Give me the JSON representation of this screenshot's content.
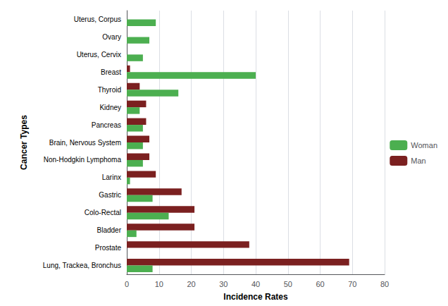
{
  "chart_data": {
    "type": "bar",
    "orientation": "horizontal",
    "categories": [
      "Lung, Trackea, Bronchus",
      "Prostate",
      "Bladder",
      "Colo-Rectal",
      "Gastric",
      "Larinx",
      "Non-Hodgkin Lymphoma",
      "Brain, Nervous System",
      "Pancreas",
      "Kidney",
      "Thyroid",
      "Breast",
      "Uterus, Cervix",
      "Ovary",
      "Uterus, Corpus"
    ],
    "series": [
      {
        "name": "Woman",
        "color": "#4caf50",
        "values": [
          8,
          0,
          3,
          13,
          8,
          1,
          5,
          5,
          5,
          4,
          16,
          40,
          5,
          7,
          9
        ]
      },
      {
        "name": "Man",
        "color": "#7b2020",
        "values": [
          69,
          38,
          21,
          21,
          17,
          9,
          7,
          7,
          6,
          6,
          4,
          1,
          0,
          0,
          0
        ]
      }
    ],
    "x_label": "Incidence Rates",
    "y_label": "Cancer Types",
    "xlim": [
      0,
      80
    ],
    "xticks": [
      0,
      10,
      20,
      30,
      40,
      50,
      60,
      70,
      80
    ],
    "grid": true,
    "legend": "right"
  }
}
